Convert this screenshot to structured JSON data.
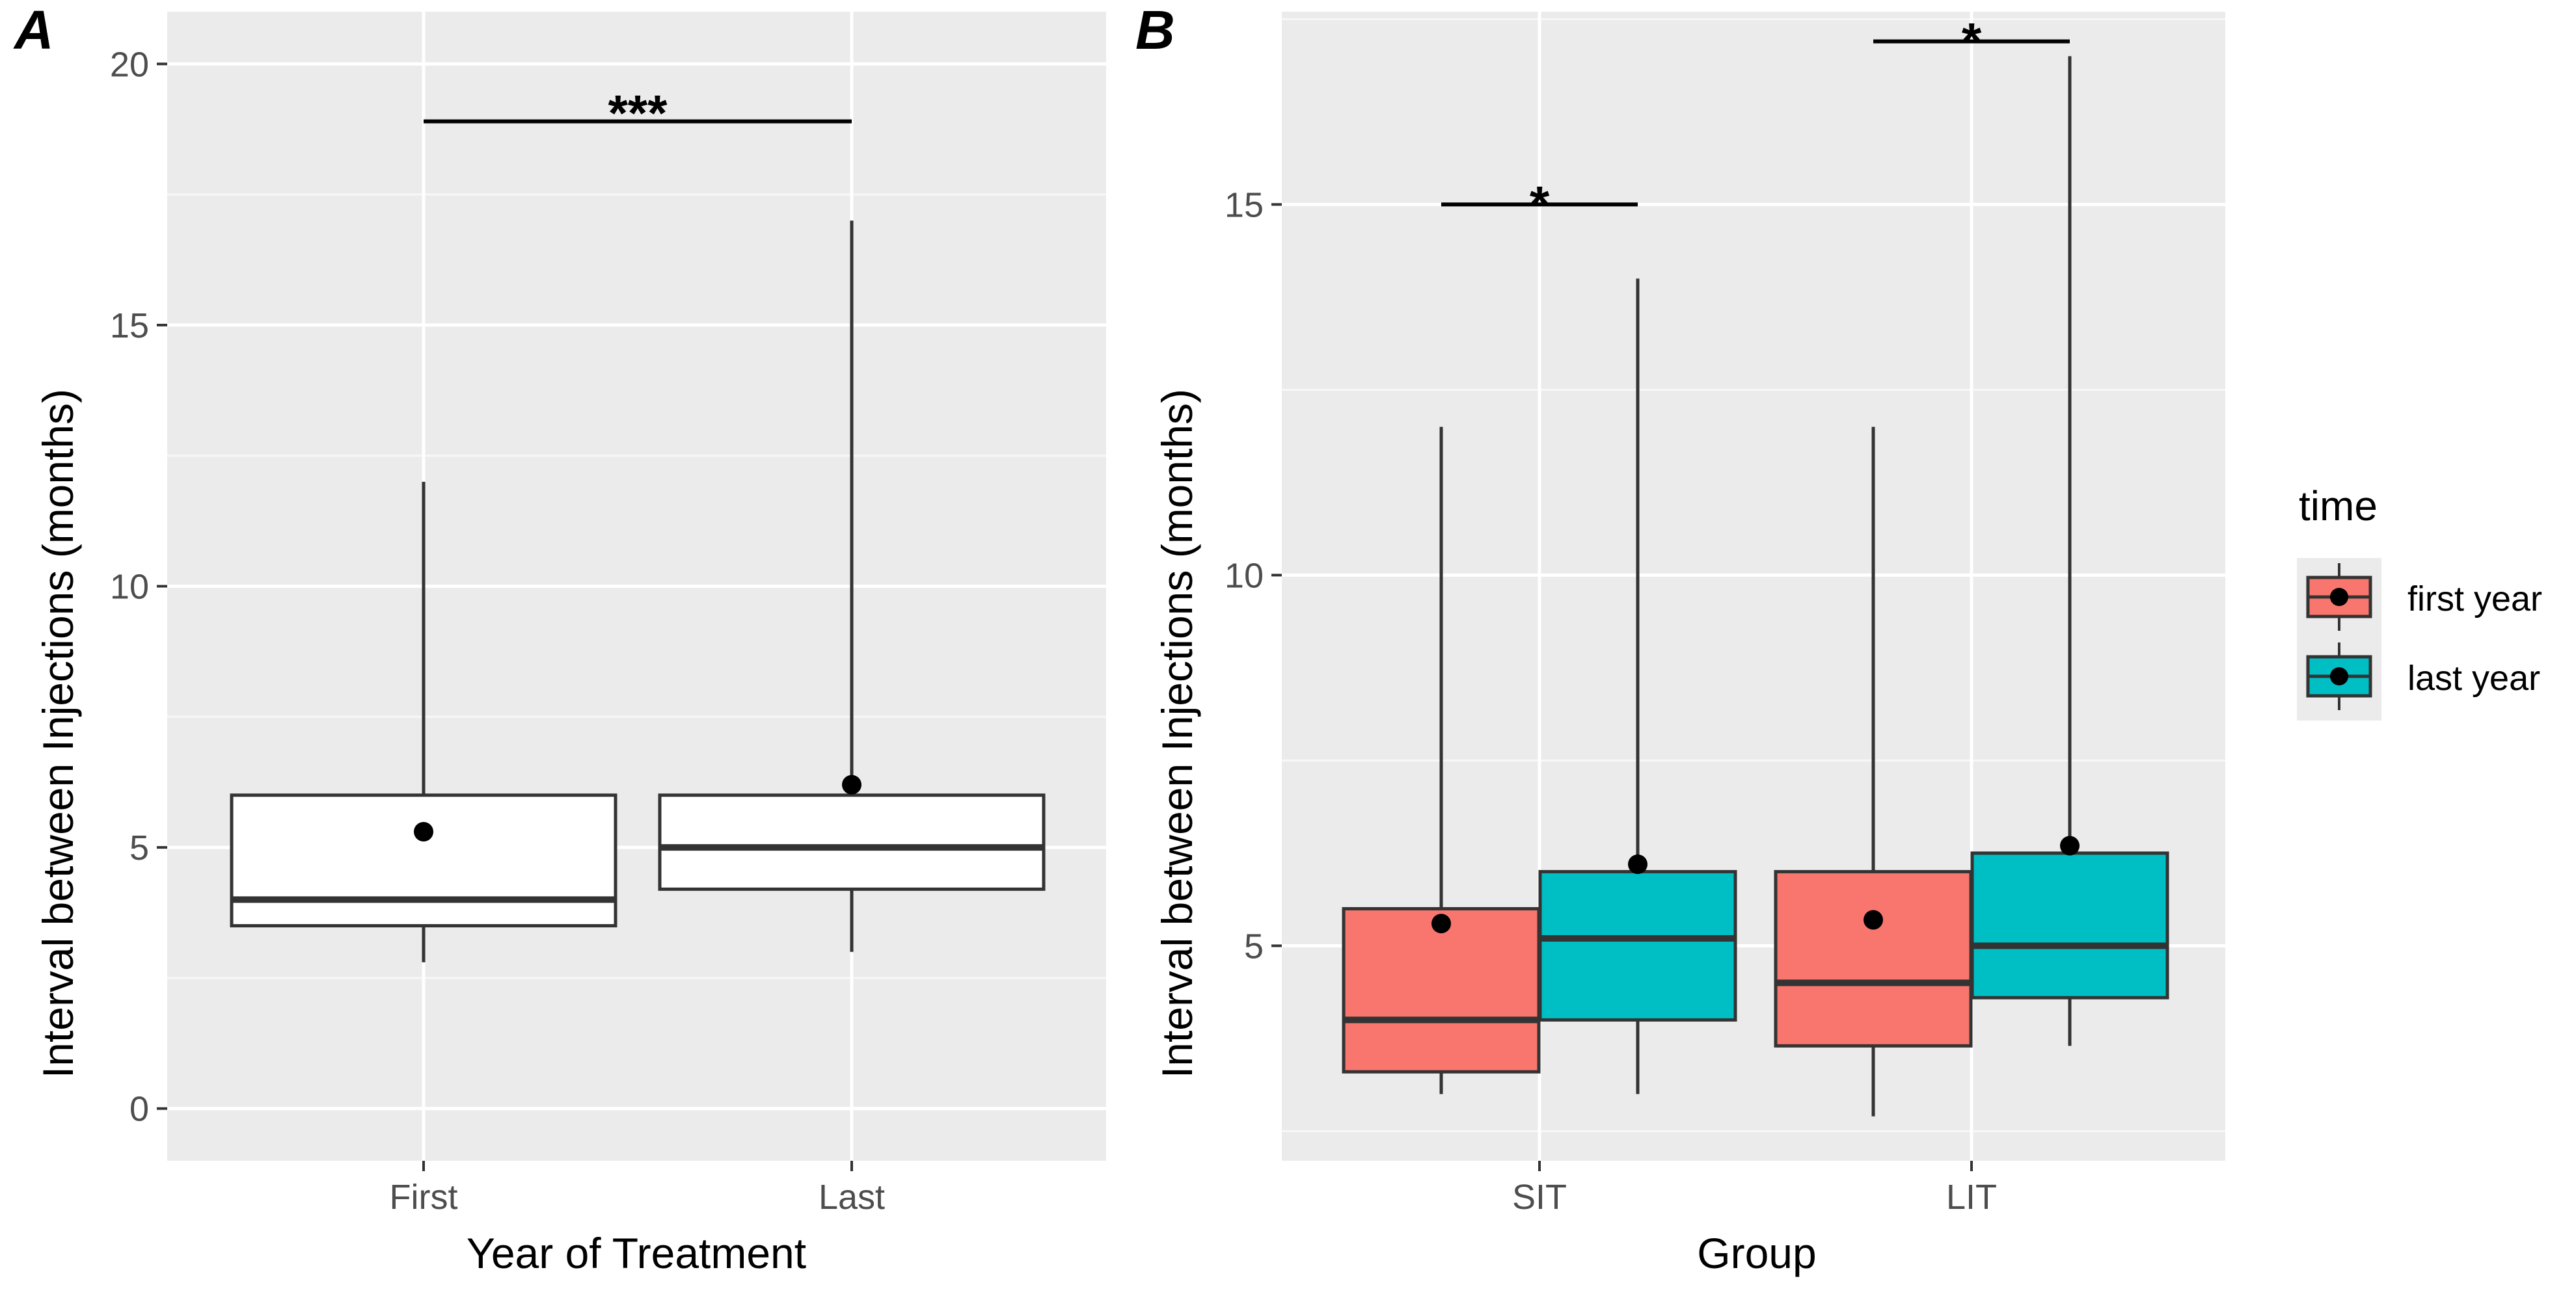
{
  "chart_data": [
    {
      "panel": "A",
      "type": "boxplot",
      "xlabel": "Year of Treatment",
      "ylabel": "Interval between Injections (months)",
      "ylim": [
        -1,
        21
      ],
      "yticks": [
        0,
        5,
        10,
        15,
        20
      ],
      "categories": [
        "First",
        "Last"
      ],
      "boxes": [
        {
          "category": "First",
          "lower_whisker": 2.8,
          "q1": 3.5,
          "median": 4.0,
          "q3": 6.0,
          "upper_whisker": 12.0,
          "mean": 5.3,
          "fill": "#ffffff"
        },
        {
          "category": "Last",
          "lower_whisker": 3.0,
          "q1": 4.2,
          "median": 5.0,
          "q3": 6.0,
          "upper_whisker": 17.0,
          "mean": 6.2,
          "fill": "#ffffff"
        }
      ],
      "significance": [
        {
          "from": "First",
          "to": "Last",
          "y": 18.9,
          "label": "***"
        }
      ]
    },
    {
      "panel": "B",
      "type": "boxplot",
      "xlabel": "Group",
      "ylabel": "Interval between Injections (months)",
      "ylim": [
        2.1,
        17.6
      ],
      "yticks": [
        5,
        10,
        15
      ],
      "categories": [
        "SIT",
        "LIT"
      ],
      "series": [
        {
          "name": "first year",
          "color": "#F8766D"
        },
        {
          "name": "last year",
          "color": "#00BFC4"
        }
      ],
      "boxes": [
        {
          "category": "SIT",
          "series": "first year",
          "lower_whisker": 3.0,
          "q1": 3.3,
          "median": 4.0,
          "q3": 5.5,
          "upper_whisker": 12.0,
          "mean": 5.3
        },
        {
          "category": "SIT",
          "series": "last year",
          "lower_whisker": 3.0,
          "q1": 4.0,
          "median": 5.1,
          "q3": 6.0,
          "upper_whisker": 14.0,
          "mean": 6.1
        },
        {
          "category": "LIT",
          "series": "first year",
          "lower_whisker": 2.7,
          "q1": 3.65,
          "median": 4.5,
          "q3": 6.0,
          "upper_whisker": 12.0,
          "mean": 5.35
        },
        {
          "category": "LIT",
          "series": "last year",
          "lower_whisker": 3.65,
          "q1": 4.3,
          "median": 5.0,
          "q3": 6.25,
          "upper_whisker": 17.0,
          "mean": 6.35
        }
      ],
      "significance": [
        {
          "category": "SIT",
          "y": 15.0,
          "label": "*"
        },
        {
          "category": "LIT",
          "y": 17.2,
          "label": "*"
        }
      ],
      "legend": {
        "title": "time",
        "position": "right",
        "entries": [
          "first year",
          "last year"
        ]
      }
    }
  ]
}
